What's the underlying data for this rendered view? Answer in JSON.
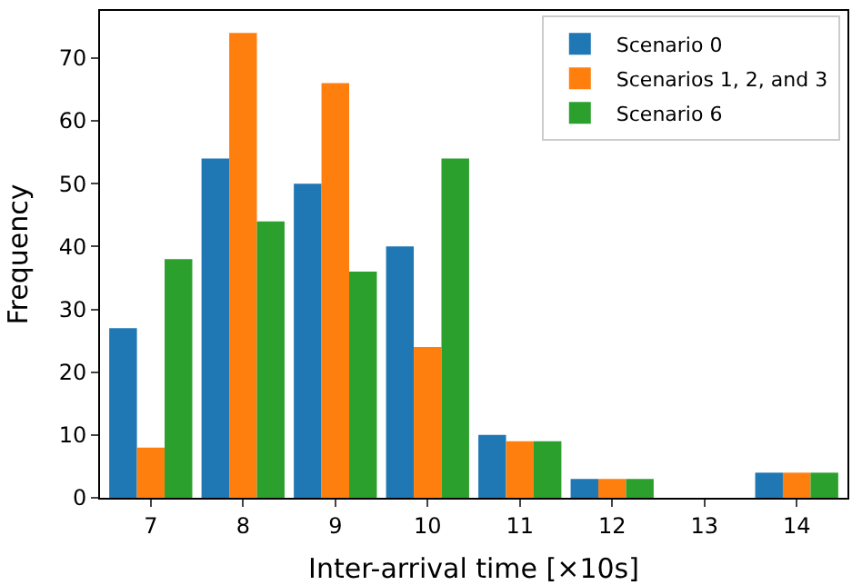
{
  "chart_data": {
    "type": "bar",
    "xlabel": "Inter-arrival time [×10s]",
    "ylabel": "Frequency",
    "categories": [
      "7",
      "8",
      "9",
      "10",
      "11",
      "12",
      "13",
      "14"
    ],
    "series": [
      {
        "name": "Scenario 0",
        "color": "#1f77b4",
        "values": [
          27,
          54,
          50,
          40,
          10,
          3,
          0,
          4
        ]
      },
      {
        "name": "Scenarios 1, 2, and 3",
        "color": "#ff7f0e",
        "values": [
          8,
          74,
          66,
          24,
          9,
          3,
          0,
          4
        ]
      },
      {
        "name": "Scenario 6",
        "color": "#2ca02c",
        "values": [
          38,
          44,
          36,
          54,
          9,
          3,
          0,
          4
        ]
      }
    ],
    "ylim": [
      0,
      77.5
    ],
    "yticks": [
      0,
      10,
      20,
      30,
      40,
      50,
      60,
      70
    ],
    "grid": false,
    "legend": "top right"
  }
}
